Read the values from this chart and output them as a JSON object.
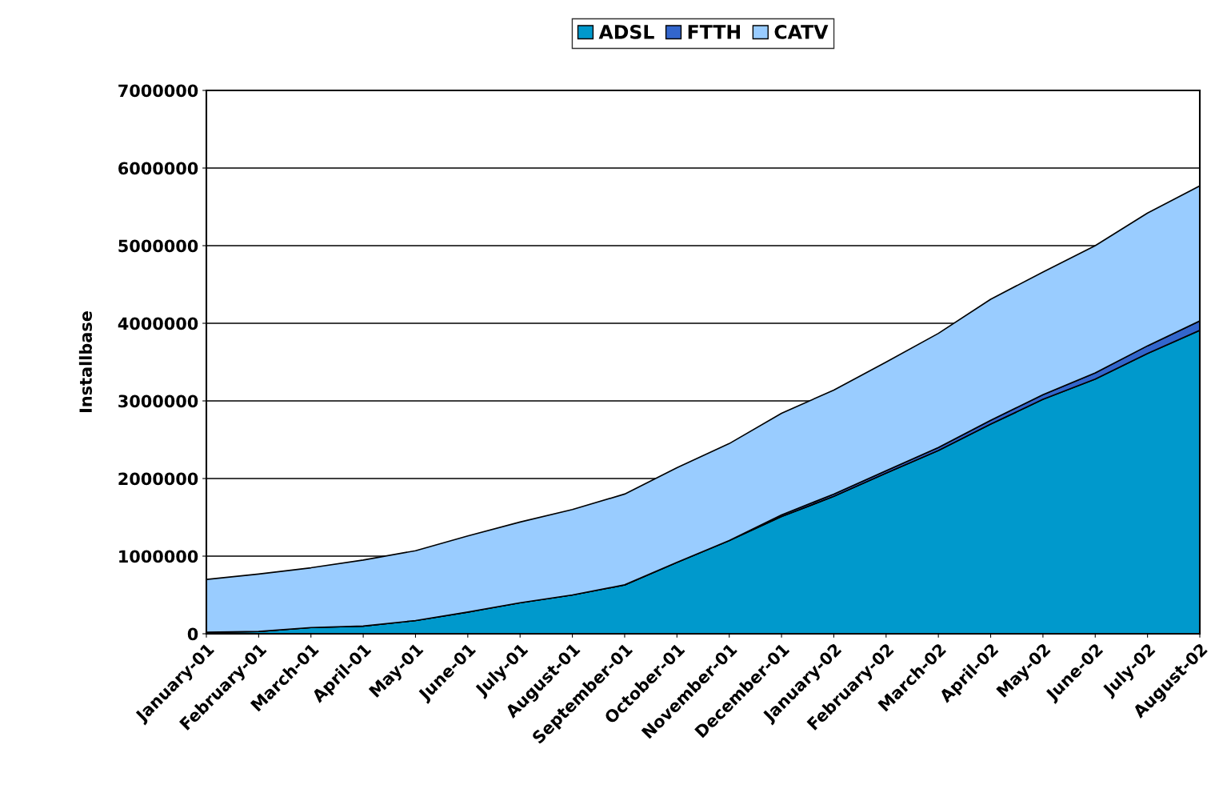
{
  "chart_data": {
    "type": "area",
    "stacked": true,
    "ylabel": "Installbase",
    "categories": [
      "January-01",
      "February-01",
      "March-01",
      "April-01",
      "May-01",
      "June-01",
      "July-01",
      "August-01",
      "September-01",
      "October-01",
      "November-01",
      "December-01",
      "January-02",
      "February-02",
      "March-02",
      "April-02",
      "May-02",
      "June-02",
      "July-02",
      "August-02"
    ],
    "series": [
      {
        "name": "ADSL",
        "color": "#0099cc",
        "values": [
          20000,
          30000,
          80000,
          100000,
          170000,
          280000,
          400000,
          500000,
          630000,
          920000,
          1200000,
          1510000,
          1770000,
          2070000,
          2360000,
          2700000,
          3020000,
          3280000,
          3610000,
          3910000
        ]
      },
      {
        "name": "FTTH",
        "color": "#3366cc",
        "values": [
          0,
          0,
          0,
          0,
          0,
          0,
          0,
          0,
          0,
          0,
          0,
          20000,
          30000,
          30000,
          40000,
          50000,
          60000,
          80000,
          100000,
          120000
        ]
      },
      {
        "name": "CATV",
        "color": "#99ccff",
        "values": [
          680000,
          740000,
          770000,
          850000,
          900000,
          980000,
          1040000,
          1100000,
          1170000,
          1220000,
          1250000,
          1310000,
          1340000,
          1400000,
          1470000,
          1560000,
          1580000,
          1640000,
          1710000,
          1740000
        ]
      }
    ],
    "ylim": [
      0,
      7000000
    ],
    "yticks": [
      0,
      1000000,
      2000000,
      3000000,
      4000000,
      5000000,
      6000000,
      7000000
    ],
    "grid": "y",
    "legend": "top"
  }
}
